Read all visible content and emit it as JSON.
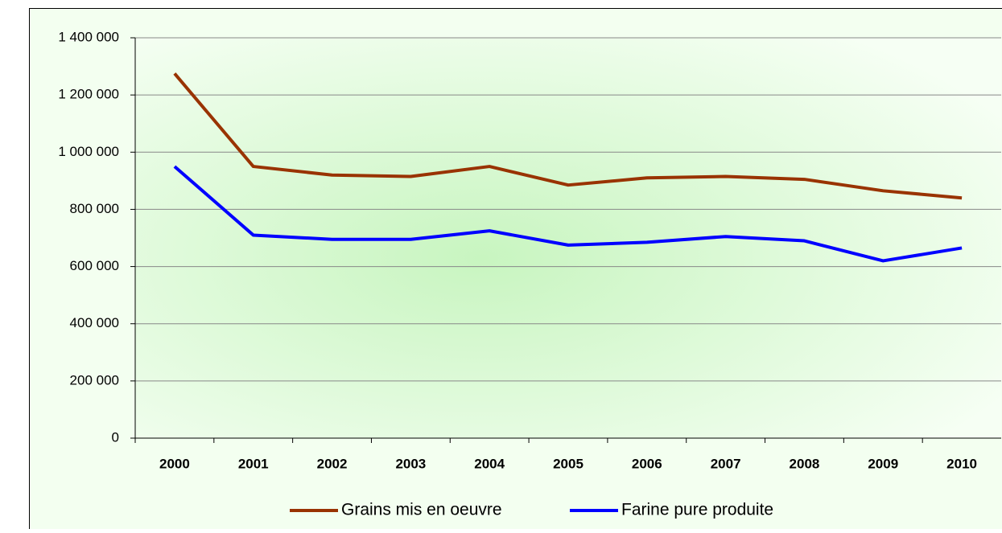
{
  "chart_data": {
    "type": "line",
    "categories": [
      "2000",
      "2001",
      "2002",
      "2003",
      "2004",
      "2005",
      "2006",
      "2007",
      "2008",
      "2009",
      "2010"
    ],
    "series": [
      {
        "name": "Grains mis en oeuvre",
        "color": "#993300",
        "values": [
          1275000,
          950000,
          920000,
          915000,
          950000,
          885000,
          910000,
          915000,
          905000,
          865000,
          840000
        ]
      },
      {
        "name": "Farine pure produite",
        "color": "#0000ff",
        "values": [
          950000,
          710000,
          695000,
          695000,
          725000,
          675000,
          685000,
          705000,
          690000,
          620000,
          665000
        ]
      }
    ],
    "ylim": [
      0,
      1400000
    ],
    "yticks": [
      0,
      {
        "value": 200000,
        "label": "200 000"
      },
      {
        "value": 400000,
        "label": "400 000"
      },
      {
        "value": 600000,
        "label": "600 000"
      },
      {
        "value": 800000,
        "label": "800 000"
      },
      {
        "value": 1000000,
        "label": "1 000 000"
      },
      {
        "value": 1200000,
        "label": "1 200 000"
      },
      {
        "value": 1400000,
        "label": "1 400 000"
      }
    ],
    "grid": true,
    "legend": "bottom"
  }
}
